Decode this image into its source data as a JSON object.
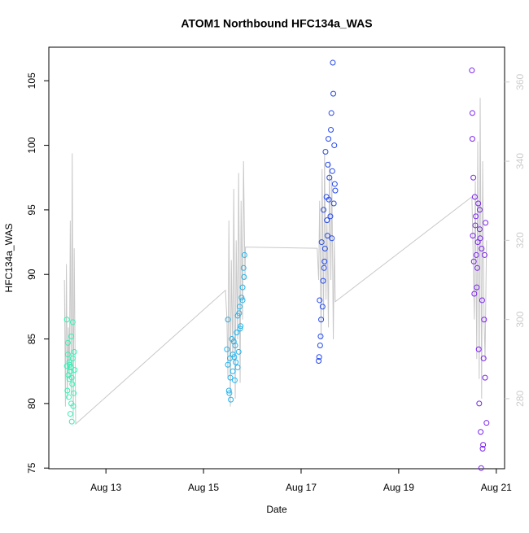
{
  "chart_data": {
    "type": "scatter",
    "title": "ATOM1 Northbound HFC134a_WAS",
    "x_label": "Date",
    "y_label": "HFC134a_WAS",
    "xlim": [
      11.83,
      21.17
    ],
    "ylim": [
      74.95,
      107.6
    ],
    "y2lim": [
      262.3,
      368.8
    ],
    "xticks": [
      {
        "value": 13,
        "label": "Aug 13"
      },
      {
        "value": 15,
        "label": "Aug 15"
      },
      {
        "value": 17,
        "label": "Aug 17"
      },
      {
        "value": 19,
        "label": "Aug 19"
      },
      {
        "value": 21,
        "label": "Aug 21"
      }
    ],
    "yticks": [
      75,
      80,
      85,
      90,
      95,
      100,
      105
    ],
    "y2ticks": [
      280,
      300,
      320,
      340,
      360
    ],
    "series": [
      {
        "color": "#33f0b4",
        "x": [
          12.2,
          12.22,
          12.25,
          12.27,
          12.3,
          12.32,
          12.35,
          12.21,
          12.24,
          12.28,
          12.31,
          12.33,
          12.26,
          12.23,
          12.29,
          12.34,
          12.2,
          12.27,
          12.3,
          12.25,
          12.32,
          12.22,
          12.36,
          12.29
        ],
        "values": [
          86.5,
          84.7,
          83.2,
          82.5,
          82.0,
          83.5,
          84.0,
          81.0,
          80.5,
          82.8,
          81.5,
          79.8,
          83.0,
          82.2,
          85.2,
          80.8,
          82.9,
          79.2,
          78.6,
          81.9,
          86.3,
          83.8,
          82.6,
          80.0
        ]
      },
      {
        "color": "#1fb4f0",
        "x": [
          15.48,
          15.5,
          15.52,
          15.54,
          15.56,
          15.58,
          15.6,
          15.62,
          15.64,
          15.66,
          15.68,
          15.7,
          15.72,
          15.74,
          15.76,
          15.78,
          15.8,
          15.82,
          15.84,
          15.5,
          15.55,
          15.6,
          15.65,
          15.7,
          15.75,
          15.8,
          15.53,
          15.63,
          15.73,
          15.83
        ],
        "values": [
          84.2,
          86.5,
          81.0,
          83.5,
          80.3,
          85.0,
          82.5,
          84.8,
          81.8,
          83.2,
          85.5,
          86.8,
          84.0,
          87.5,
          86.0,
          88.2,
          89.0,
          90.5,
          91.5,
          83.0,
          82.0,
          83.8,
          84.5,
          82.8,
          85.8,
          88.0,
          80.8,
          83.6,
          87.0,
          89.8
        ]
      },
      {
        "color": "#2448ee",
        "x": [
          17.36,
          17.38,
          17.4,
          17.42,
          17.44,
          17.46,
          17.48,
          17.5,
          17.52,
          17.54,
          17.56,
          17.58,
          17.6,
          17.62,
          17.64,
          17.66,
          17.68,
          17.7,
          17.37,
          17.41,
          17.45,
          17.49,
          17.53,
          17.57,
          17.61,
          17.65,
          17.69,
          17.39,
          17.47,
          17.55,
          17.63,
          17.67
        ],
        "values": [
          83.3,
          88.0,
          85.2,
          92.5,
          87.5,
          95.0,
          91.0,
          99.5,
          96.0,
          93.0,
          100.5,
          97.5,
          94.5,
          102.5,
          98.0,
          104.0,
          100.0,
          96.5,
          83.6,
          86.5,
          89.5,
          92.0,
          94.2,
          95.8,
          101.2,
          106.4,
          97.0,
          84.5,
          90.5,
          98.5,
          92.8,
          95.5
        ]
      },
      {
        "color": "#7a22ee",
        "x": [
          20.5,
          20.52,
          20.54,
          20.56,
          20.58,
          20.6,
          20.62,
          20.64,
          20.66,
          20.68,
          20.7,
          20.72,
          20.74,
          20.76,
          20.78,
          20.8,
          20.51,
          20.53,
          20.55,
          20.57,
          20.59,
          20.61,
          20.63,
          20.65,
          20.67,
          20.69,
          20.71,
          20.73,
          20.75,
          20.77,
          20.51,
          20.66
        ],
        "values": [
          105.8,
          93.0,
          91.0,
          96.0,
          94.5,
          89.0,
          92.5,
          84.2,
          93.5,
          77.8,
          92.0,
          76.5,
          83.5,
          91.5,
          94.0,
          78.5,
          102.5,
          97.5,
          88.5,
          93.8,
          91.5,
          90.5,
          95.5,
          80.0,
          92.8,
          75.0,
          88.0,
          76.8,
          86.5,
          82.0,
          100.5,
          95.0
        ]
      },
      {
        "type": "line",
        "axis": "y2",
        "color": "#c8c8c8",
        "x": [
          12.15,
          12.17,
          12.19,
          12.21,
          12.23,
          12.25,
          12.27,
          12.29,
          12.31,
          12.33,
          12.35,
          12.38,
          15.45,
          15.48,
          15.5,
          15.52,
          15.55,
          15.57,
          15.6,
          15.62,
          15.65,
          15.67,
          15.7,
          15.72,
          15.75,
          15.77,
          15.8,
          15.82,
          15.85,
          15.86,
          17.33,
          17.36,
          17.38,
          17.41,
          17.43,
          17.46,
          17.48,
          17.51,
          17.53,
          17.56,
          17.58,
          17.61,
          17.63,
          17.66,
          17.68,
          17.7,
          20.5,
          20.52,
          20.55,
          20.57,
          20.6,
          20.62,
          20.65,
          20.67,
          20.7,
          20.72,
          20.75,
          20.77,
          20.8
        ],
        "values": [
          310,
          278,
          314,
          280,
          298,
          285,
          325,
          281,
          342,
          275,
          318,
          273.6,
          307.4,
          300,
          285,
          325,
          278,
          315,
          290,
          333,
          280,
          320,
          295,
          337,
          284,
          330,
          300,
          340,
          310,
          318.3,
          318,
          310,
          330,
          295,
          338,
          300,
          342,
          305,
          325,
          298,
          340,
          310,
          336,
          295,
          320,
          304.5,
          331,
          320,
          300,
          335,
          290,
          345,
          285,
          356,
          280,
          340,
          300,
          290,
          320
        ]
      }
    ]
  }
}
